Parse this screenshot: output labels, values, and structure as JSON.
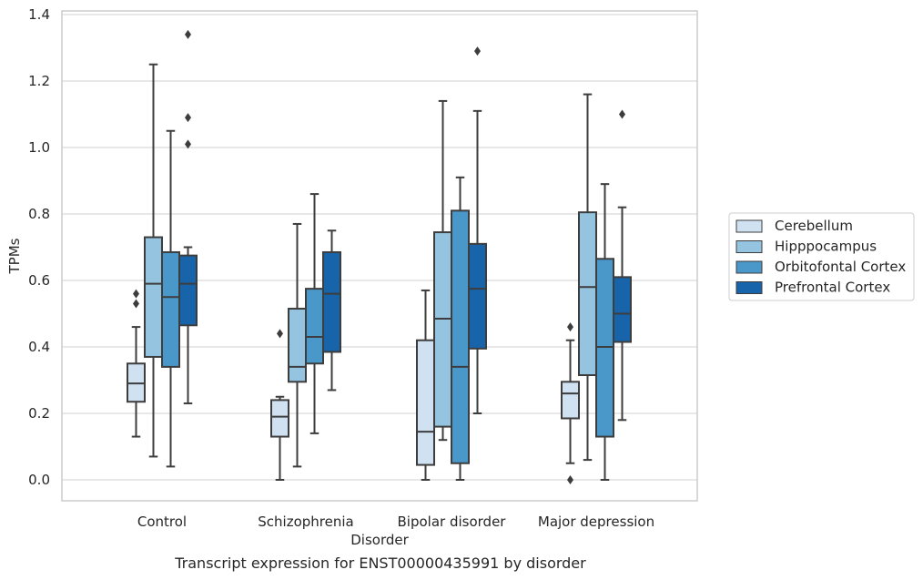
{
  "caption": "Transcript expression for ENST00000435991 by disorder",
  "chart_data": {
    "type": "box",
    "xlabel": "Disorder",
    "ylabel": "TPMs",
    "ylim": [
      -0.06,
      1.41
    ],
    "yticks": [
      "0.0",
      "0.2",
      "0.4",
      "0.6",
      "0.8",
      "1.0",
      "1.2",
      "1.4"
    ],
    "categories": [
      "Control",
      "Schizophrenia",
      "Bipolar disorder",
      "Major depression"
    ],
    "grid": true,
    "legend": "right",
    "series": [
      {
        "name": "Cerebellum",
        "color": "#d0e1f2",
        "boxes": [
          {
            "whislo": 0.13,
            "q1": 0.235,
            "med": 0.29,
            "q3": 0.35,
            "whishi": 0.46,
            "fliers": [
              0.53,
              0.56
            ]
          },
          {
            "whislo": 0.0,
            "q1": 0.13,
            "med": 0.19,
            "q3": 0.24,
            "whishi": 0.25,
            "fliers": [
              0.44
            ]
          },
          {
            "whislo": 0.0,
            "q1": 0.045,
            "med": 0.145,
            "q3": 0.42,
            "whishi": 0.57,
            "fliers": []
          },
          {
            "whislo": 0.05,
            "q1": 0.185,
            "med": 0.26,
            "q3": 0.295,
            "whishi": 0.42,
            "fliers": [
              0.0,
              0.46
            ]
          }
        ]
      },
      {
        "name": "Hipppocampus",
        "color": "#94c4df",
        "boxes": [
          {
            "whislo": 0.07,
            "q1": 0.37,
            "med": 0.59,
            "q3": 0.73,
            "whishi": 1.25,
            "fliers": []
          },
          {
            "whislo": 0.04,
            "q1": 0.295,
            "med": 0.34,
            "q3": 0.515,
            "whishi": 0.77,
            "fliers": []
          },
          {
            "whislo": 0.12,
            "q1": 0.16,
            "med": 0.485,
            "q3": 0.745,
            "whishi": 1.14,
            "fliers": []
          },
          {
            "whislo": 0.06,
            "q1": 0.315,
            "med": 0.58,
            "q3": 0.805,
            "whishi": 1.16,
            "fliers": []
          }
        ]
      },
      {
        "name": "Orbitofontal Cortex",
        "color": "#4a98c9",
        "boxes": [
          {
            "whislo": 0.04,
            "q1": 0.34,
            "med": 0.55,
            "q3": 0.685,
            "whishi": 1.05,
            "fliers": []
          },
          {
            "whislo": 0.14,
            "q1": 0.35,
            "med": 0.43,
            "q3": 0.575,
            "whishi": 0.86,
            "fliers": []
          },
          {
            "whislo": 0.0,
            "q1": 0.05,
            "med": 0.34,
            "q3": 0.81,
            "whishi": 0.91,
            "fliers": []
          },
          {
            "whislo": 0.0,
            "q1": 0.13,
            "med": 0.4,
            "q3": 0.665,
            "whishi": 0.89,
            "fliers": []
          }
        ]
      },
      {
        "name": "Prefrontal Cortex",
        "color": "#1764ab",
        "boxes": [
          {
            "whislo": 0.23,
            "q1": 0.465,
            "med": 0.59,
            "q3": 0.675,
            "whishi": 0.7,
            "fliers": [
              1.01,
              1.09,
              1.34
            ]
          },
          {
            "whislo": 0.27,
            "q1": 0.385,
            "med": 0.56,
            "q3": 0.685,
            "whishi": 0.75,
            "fliers": []
          },
          {
            "whislo": 0.2,
            "q1": 0.395,
            "med": 0.575,
            "q3": 0.71,
            "whishi": 1.11,
            "fliers": [
              1.29
            ]
          },
          {
            "whislo": 0.18,
            "q1": 0.415,
            "med": 0.5,
            "q3": 0.61,
            "whishi": 0.82,
            "fliers": [
              1.1
            ]
          }
        ]
      }
    ]
  }
}
